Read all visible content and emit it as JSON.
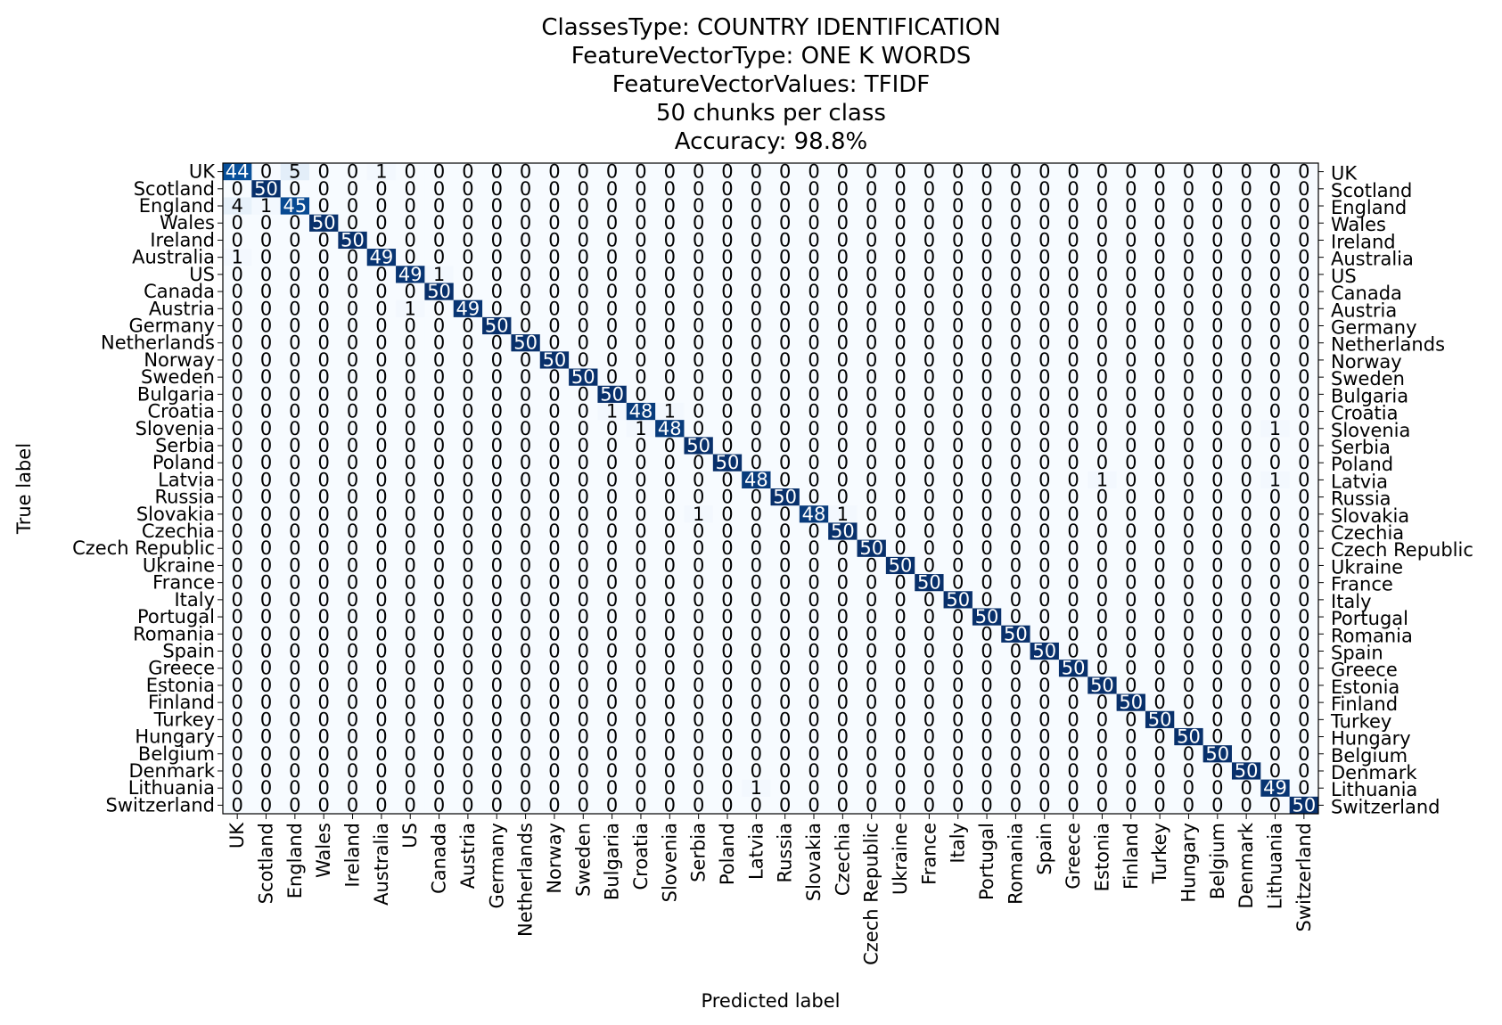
{
  "chart_data": {
    "type": "heatmap",
    "title_lines": [
      "ClassesType: COUNTRY IDENTIFICATION",
      "FeatureVectorType: ONE K WORDS",
      "FeatureVectorValues: TFIDF",
      "50 chunks per class",
      "Accuracy: 98.8%"
    ],
    "xlabel": "Predicted label",
    "ylabel": "True label",
    "labels": [
      "UK",
      "Scotland",
      "England",
      "Wales",
      "Ireland",
      "Australia",
      "US",
      "Canada",
      "Austria",
      "Germany",
      "Netherlands",
      "Norway",
      "Sweden",
      "Bulgaria",
      "Croatia",
      "Slovenia",
      "Serbia",
      "Poland",
      "Latvia",
      "Russia",
      "Slovakia",
      "Czechia",
      "Czech Republic",
      "Ukraine",
      "France",
      "Italy",
      "Portugal",
      "Romania",
      "Spain",
      "Greece",
      "Estonia",
      "Finland",
      "Turkey",
      "Hungary",
      "Belgium",
      "Denmark",
      "Lithuania",
      "Switzerland"
    ],
    "colormap": "Blues",
    "vmin": 0,
    "vmax": 50,
    "off_diagonal": [
      {
        "row": 0,
        "col": 2,
        "value": 5
      },
      {
        "row": 0,
        "col": 5,
        "value": 1
      },
      {
        "row": 2,
        "col": 0,
        "value": 4
      },
      {
        "row": 2,
        "col": 1,
        "value": 1
      },
      {
        "row": 5,
        "col": 0,
        "value": 1
      },
      {
        "row": 6,
        "col": 7,
        "value": 1
      },
      {
        "row": 8,
        "col": 6,
        "value": 1
      },
      {
        "row": 14,
        "col": 13,
        "value": 1
      },
      {
        "row": 14,
        "col": 15,
        "value": 1
      },
      {
        "row": 15,
        "col": 14,
        "value": 1
      },
      {
        "row": 15,
        "col": 36,
        "value": 1
      },
      {
        "row": 18,
        "col": 30,
        "value": 1
      },
      {
        "row": 18,
        "col": 36,
        "value": 1
      },
      {
        "row": 20,
        "col": 16,
        "value": 1
      },
      {
        "row": 20,
        "col": 21,
        "value": 1
      },
      {
        "row": 36,
        "col": 18,
        "value": 1
      }
    ],
    "diagonal": [
      44,
      50,
      45,
      50,
      50,
      49,
      49,
      50,
      49,
      50,
      50,
      50,
      50,
      50,
      48,
      48,
      50,
      50,
      48,
      50,
      48,
      50,
      50,
      50,
      50,
      50,
      50,
      50,
      50,
      50,
      50,
      50,
      50,
      50,
      50,
      50,
      49,
      50
    ],
    "grid": false,
    "legend": "none"
  }
}
